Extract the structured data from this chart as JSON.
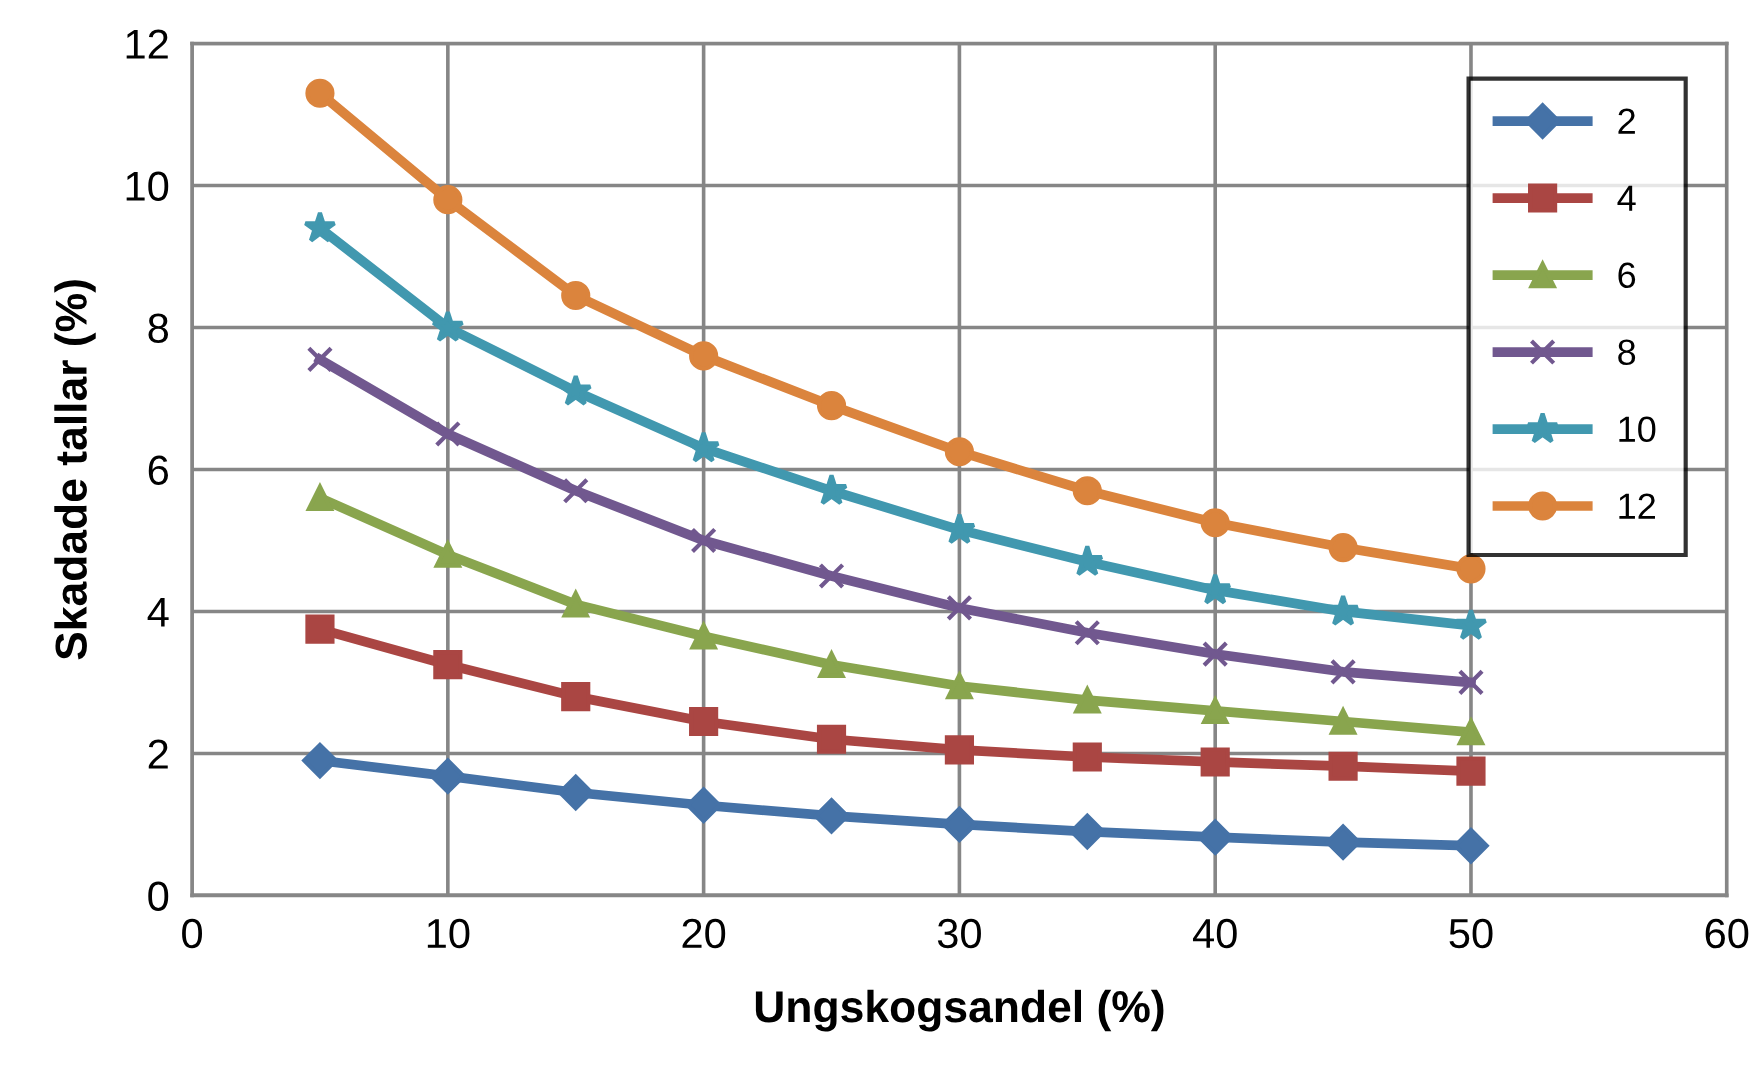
{
  "chart_data": {
    "type": "line",
    "xlabel": "Ungskogsandel (%)",
    "ylabel": "Skadade tallar (%)",
    "x": [
      5,
      10,
      15,
      20,
      25,
      30,
      35,
      40,
      45,
      50
    ],
    "xlim": [
      0,
      60
    ],
    "xticks": [
      0,
      10,
      20,
      30,
      40,
      50,
      60
    ],
    "ylim": [
      0,
      12
    ],
    "yticks": [
      0,
      2,
      4,
      6,
      8,
      10,
      12
    ],
    "grid": true,
    "legend": "top right",
    "line_style": "solid",
    "series": [
      {
        "name": "2",
        "color": "#4572a7",
        "marker": "diamond",
        "values": [
          1.9,
          1.68,
          1.45,
          1.27,
          1.12,
          1.0,
          0.9,
          0.82,
          0.75,
          0.7
        ]
      },
      {
        "name": "4",
        "color": "#aa4643",
        "marker": "square",
        "values": [
          3.75,
          3.25,
          2.8,
          2.45,
          2.2,
          2.05,
          1.95,
          1.88,
          1.82,
          1.75
        ]
      },
      {
        "name": "6",
        "color": "#89a54e",
        "marker": "triangle",
        "values": [
          5.6,
          4.8,
          4.1,
          3.65,
          3.25,
          2.95,
          2.75,
          2.6,
          2.45,
          2.3
        ]
      },
      {
        "name": "8",
        "color": "#71588f",
        "marker": "cross",
        "values": [
          7.55,
          6.5,
          5.7,
          5.0,
          4.5,
          4.05,
          3.7,
          3.4,
          3.15,
          3.0
        ]
      },
      {
        "name": "10",
        "color": "#4198af",
        "marker": "star",
        "values": [
          9.4,
          8.0,
          7.1,
          6.3,
          5.7,
          5.15,
          4.7,
          4.3,
          4.0,
          3.8
        ]
      },
      {
        "name": "12",
        "color": "#db843d",
        "marker": "circle",
        "values": [
          11.3,
          9.8,
          8.45,
          7.6,
          6.9,
          6.25,
          5.7,
          5.25,
          4.9,
          4.6
        ]
      }
    ]
  }
}
